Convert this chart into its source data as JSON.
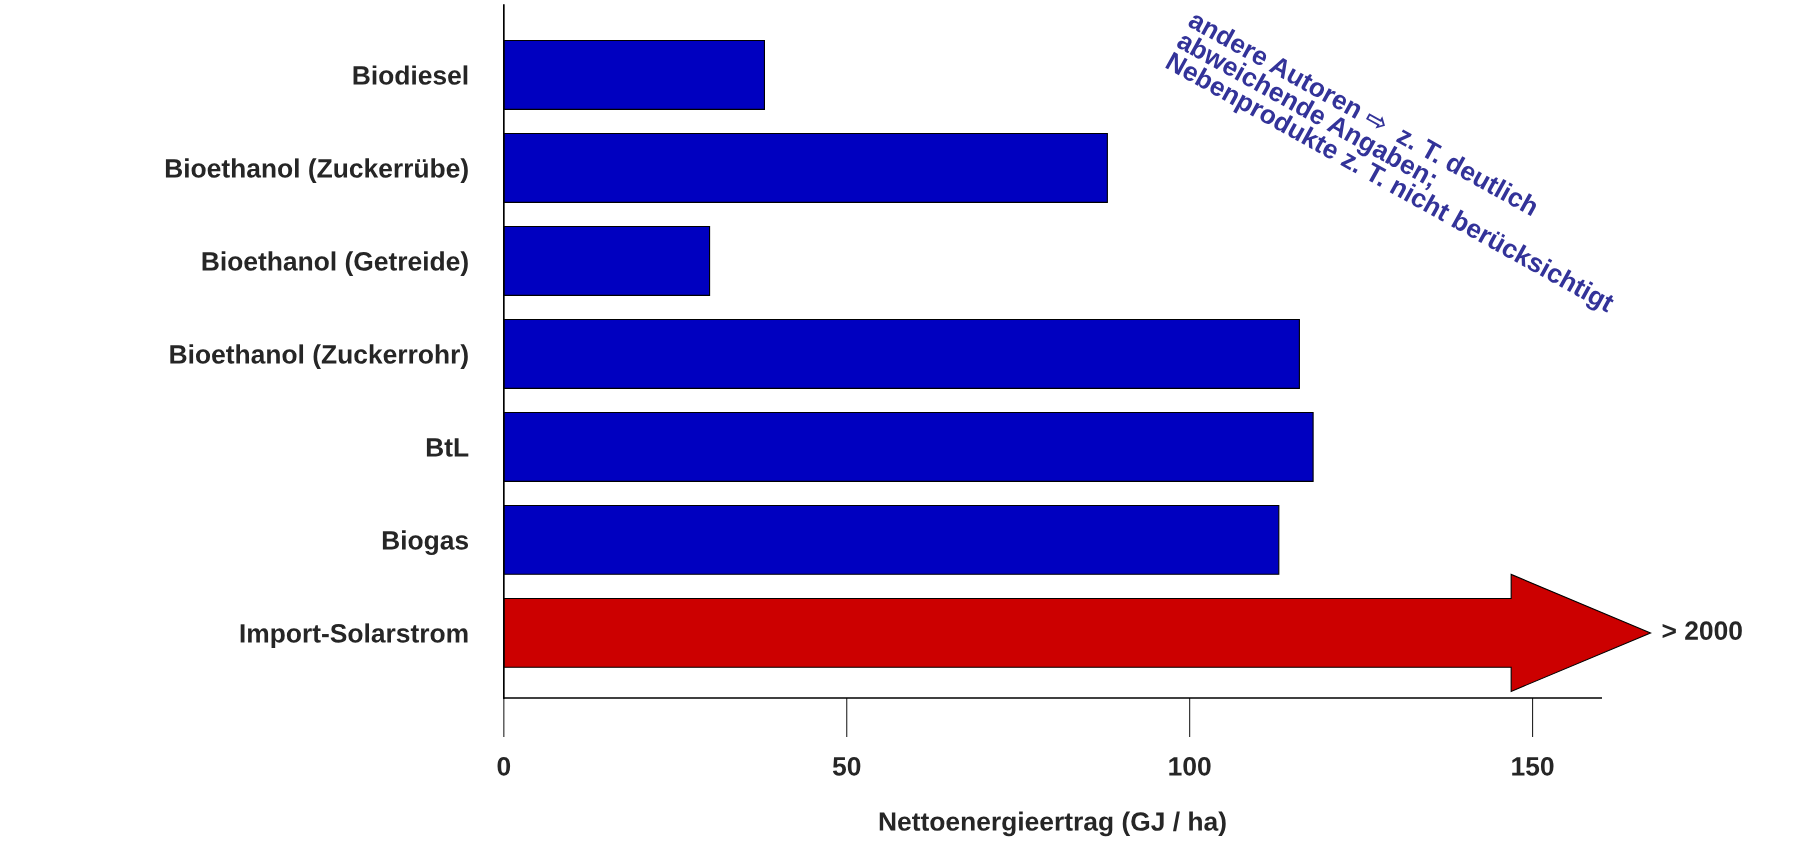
{
  "chart_data": {
    "type": "bar",
    "orientation": "horizontal",
    "xlabel": "Nettoenergieertrag (GJ / ha)",
    "categories": [
      "Biodiesel",
      "Bioethanol (Zuckerrübe)",
      "Bioethanol (Getreide)",
      "Bioethanol (Zuckerrohr)",
      "BtL",
      "Biogas",
      "Import-Solarstrom"
    ],
    "values": [
      38,
      88,
      30,
      116,
      118,
      113,
      null
    ],
    "colors": [
      "#0000c0",
      "#0000c0",
      "#0000c0",
      "#0000c0",
      "#0000c0",
      "#0000c0",
      "#cc0000"
    ],
    "value_labels": [
      null,
      null,
      null,
      null,
      null,
      null,
      "> 2000"
    ],
    "xlim": [
      0,
      160
    ],
    "xticks": [
      0,
      50,
      100,
      150
    ],
    "grid": false,
    "legend": false,
    "annotations": [
      "andere Autoren ⇨  z. T. deutlich",
      "abweichende Angaben;",
      "Nebenprodukte z. T. nicht berücksichtigt"
    ]
  }
}
